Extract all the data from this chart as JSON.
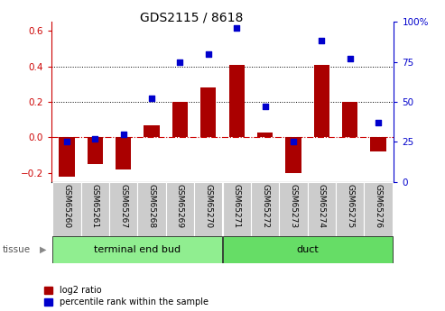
{
  "title": "GDS2115 / 8618",
  "samples": [
    "GSM65260",
    "GSM65261",
    "GSM65267",
    "GSM65268",
    "GSM65269",
    "GSM65270",
    "GSM65271",
    "GSM65272",
    "GSM65273",
    "GSM65274",
    "GSM65275",
    "GSM65276"
  ],
  "log2_ratio": [
    -0.22,
    -0.15,
    -0.18,
    0.07,
    0.2,
    0.28,
    0.41,
    0.03,
    -0.2,
    0.41,
    0.2,
    -0.08
  ],
  "percentile_rank": [
    25,
    27,
    30,
    52,
    75,
    80,
    96,
    47,
    25,
    88,
    77,
    37
  ],
  "groups": [
    {
      "label": "terminal end bud",
      "start": 0,
      "end": 6,
      "color": "#90EE90"
    },
    {
      "label": "duct",
      "start": 6,
      "end": 12,
      "color": "#66DD66"
    }
  ],
  "bar_color": "#AA0000",
  "dot_color": "#0000CC",
  "ylim_left": [
    -0.25,
    0.65
  ],
  "ylim_right": [
    0,
    100
  ],
  "yticks_left": [
    -0.2,
    0.0,
    0.2,
    0.4,
    0.6
  ],
  "yticks_right": [
    0,
    25,
    50,
    75,
    100
  ],
  "left_tick_color": "#CC0000",
  "right_tick_color": "#0000CC",
  "hline_y": [
    0.2,
    0.4
  ],
  "zero_line_color": "#CC0000",
  "background_color": "#ffffff",
  "label_bg_color": "#CCCCCC",
  "tissue_label": "tissue",
  "legend_log2": "log2 ratio",
  "legend_pct": "percentile rank within the sample",
  "n_samples": 12,
  "split_at": 6
}
